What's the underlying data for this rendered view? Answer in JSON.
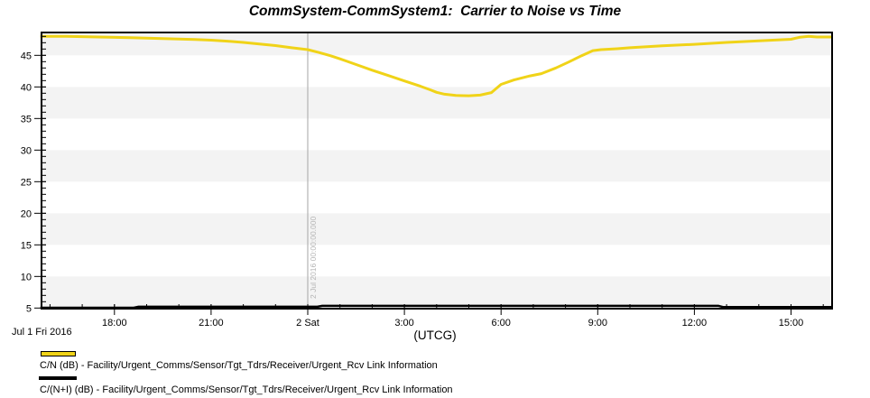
{
  "window": {
    "title": "CommSystem-CommSystem1:  Carrier to Noise vs Time"
  },
  "chart_data": {
    "type": "line",
    "title": "CommSystem-CommSystem1:  Carrier to Noise vs Time",
    "xlabel": "(UTCG)",
    "ylabel": "",
    "x_start_date_label": "Jul 1 Fri 2016",
    "grid": "striped-bands",
    "legend_position": "bottom-left",
    "ylim": [
      4.76,
      48.76
    ],
    "xlim_hours_from_midnight": [
      -8.3,
      16.3
    ],
    "y_ticks": [
      5,
      10,
      15,
      20,
      25,
      30,
      35,
      40,
      45
    ],
    "x_ticks": [
      {
        "hour": -6,
        "label": "18:00"
      },
      {
        "hour": -3,
        "label": "21:00"
      },
      {
        "hour": 0,
        "label": "2 Sat"
      },
      {
        "hour": 3,
        "label": "3:00"
      },
      {
        "hour": 6,
        "label": "6:00"
      },
      {
        "hour": 9,
        "label": "9:00"
      },
      {
        "hour": 12,
        "label": "12:00"
      },
      {
        "hour": 15,
        "label": "15:00"
      }
    ],
    "event_line": {
      "hour": 0,
      "label": "2 Jul 2016 00:00:00.000"
    },
    "series": [
      {
        "name": "C/N (dB)",
        "color": "#F0D318",
        "width": 3,
        "points": [
          [
            -8.3,
            48.0
          ],
          [
            -7.5,
            48.0
          ],
          [
            -6.5,
            47.9
          ],
          [
            -5.5,
            47.8
          ],
          [
            -4.5,
            47.65
          ],
          [
            -3.5,
            47.5
          ],
          [
            -3.0,
            47.4
          ],
          [
            -2.5,
            47.25
          ],
          [
            -2.0,
            47.05
          ],
          [
            -1.5,
            46.8
          ],
          [
            -1.0,
            46.55
          ],
          [
            -0.5,
            46.2
          ],
          [
            0.0,
            45.9
          ],
          [
            0.35,
            45.45
          ],
          [
            0.7,
            44.95
          ],
          [
            1.0,
            44.45
          ],
          [
            1.5,
            43.55
          ],
          [
            2.0,
            42.65
          ],
          [
            2.5,
            41.8
          ],
          [
            3.0,
            40.95
          ],
          [
            3.5,
            40.1
          ],
          [
            3.8,
            39.55
          ],
          [
            4.0,
            39.15
          ],
          [
            4.25,
            38.85
          ],
          [
            4.6,
            38.65
          ],
          [
            5.0,
            38.6
          ],
          [
            5.35,
            38.7
          ],
          [
            5.7,
            39.1
          ],
          [
            6.0,
            40.4
          ],
          [
            6.4,
            41.1
          ],
          [
            6.9,
            41.75
          ],
          [
            7.25,
            42.1
          ],
          [
            7.7,
            43.0
          ],
          [
            8.1,
            43.95
          ],
          [
            8.5,
            44.95
          ],
          [
            8.85,
            45.75
          ],
          [
            9.1,
            45.9
          ],
          [
            9.6,
            46.05
          ],
          [
            10.0,
            46.2
          ],
          [
            11.0,
            46.5
          ],
          [
            12.0,
            46.75
          ],
          [
            13.0,
            47.05
          ],
          [
            14.0,
            47.3
          ],
          [
            15.0,
            47.55
          ],
          [
            15.25,
            47.85
          ],
          [
            15.55,
            48.0
          ],
          [
            15.8,
            47.9
          ],
          [
            16.3,
            47.9
          ]
        ]
      },
      {
        "name": "C/(N+I) (dB)",
        "color": "#000000",
        "width": 2.5,
        "points": [
          [
            -8.3,
            5.05
          ],
          [
            -5.4,
            5.05
          ],
          [
            -5.25,
            5.2
          ],
          [
            0.3,
            5.2
          ],
          [
            0.45,
            5.35
          ],
          [
            12.75,
            5.35
          ],
          [
            12.9,
            5.15
          ],
          [
            16.3,
            5.15
          ]
        ]
      }
    ],
    "legend": [
      {
        "swatch_color": "#F0D318",
        "label": "C/N (dB) - Facility/Urgent_Comms/Sensor/Tgt_Tdrs/Receiver/Urgent_Rcv Link Information"
      },
      {
        "swatch_color": "#000000",
        "label": "C/(N+I) (dB) - Facility/Urgent_Comms/Sensor/Tgt_Tdrs/Receiver/Urgent_Rcv Link Information"
      }
    ],
    "colors": {
      "band_gray": "#F3F3F3",
      "frame": "#000000",
      "event_line": "#A6A6A6",
      "event_text": "#B4B4B4",
      "tick_text": "#000000"
    }
  }
}
